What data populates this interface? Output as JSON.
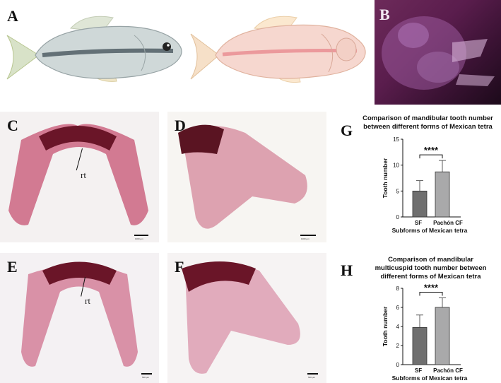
{
  "panels": {
    "a": "A",
    "b": "B",
    "c": "C",
    "d": "D",
    "e": "E",
    "f": "F",
    "g": "G",
    "h": "H"
  },
  "annotations": {
    "rt_c": "rt",
    "rt_e": "rt"
  },
  "scale_bars": {
    "c": "1000 µm",
    "d": "1000 µm",
    "e": "500 µm",
    "f": "500 µm"
  },
  "colors": {
    "sf_bar": "#6f6f6f",
    "cf_bar": "#a9a9aa",
    "stain": "#a8294a"
  },
  "chart_data": [
    {
      "type": "bar",
      "title": "Comparison of mandibular tooth number between different forms of Mexican tetra",
      "title_lines": [
        "Comparison of mandibular tooth number",
        "between different forms of Mexican tetra"
      ],
      "categories": [
        "SF",
        "Pachón CF"
      ],
      "values": [
        5.0,
        8.7
      ],
      "error": [
        2.0,
        2.2
      ],
      "ylabel": "Tooth number",
      "xlabel": "Subforms of Mexican tetra",
      "ylim": [
        0,
        15
      ],
      "yticks": [
        0,
        5,
        10,
        15
      ],
      "significance": "****"
    },
    {
      "type": "bar",
      "title": "Comparison of mandibular multicuspid tooth number between different forms of Mexican tetra",
      "title_lines": [
        "Comparison of mandibular",
        "multicuspid tooth number between",
        "different forms of Mexican tetra"
      ],
      "categories": [
        "SF",
        "Pachón CF"
      ],
      "values": [
        3.9,
        6.0
      ],
      "error": [
        1.3,
        1.0
      ],
      "ylabel": "Tooth number",
      "xlabel": "Subforms of Mexican tetra",
      "ylim": [
        0,
        8
      ],
      "yticks": [
        0,
        2,
        4,
        6,
        8
      ],
      "significance": "****"
    }
  ]
}
